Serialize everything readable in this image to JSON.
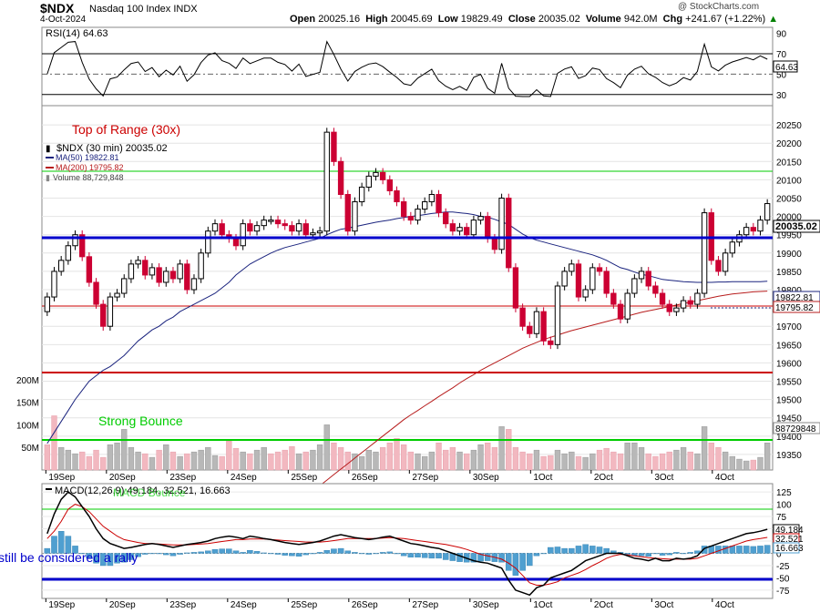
{
  "header": {
    "symbol": "$NDX",
    "index_name": "Nasdaq 100 Index  INDX",
    "date": "4-Oct-2024",
    "open_label": "Open",
    "open": "20025.16",
    "high_label": "High",
    "high": "20045.69",
    "low_label": "Low",
    "low": "19829.49",
    "close_label": "Close",
    "close": "20035.02",
    "volume_label": "Volume",
    "volume": "942.0M",
    "chg_label": "Chg",
    "chg": "+241.67 (+1.22%)",
    "chg_arrow": "▲",
    "copyright": "@ StockCharts.com"
  },
  "annotations": {
    "top_of_range": "Top of Range (30x)",
    "strong_bounce": "Strong Bounce",
    "macd_bounce": "MACD Bounce",
    "rally_note": "still be considered a rally"
  },
  "colors": {
    "up": "#000000",
    "down": "#cc0033",
    "ma50": "#1a237e",
    "ma200": "#b71c1c",
    "support_line": "#0000cc",
    "red_line": "#cc0000",
    "green_line": "#00cc00",
    "vol_up": "#b8b8b8",
    "vol_down": "#f2b8c0",
    "macd_hist": "#4f9fd0"
  },
  "chart_data": [
    {
      "type": "line",
      "title": "RSI(14) 64.63",
      "series": [
        {
          "name": "RSI(14)",
          "last": 64.63
        }
      ],
      "ylim": [
        20,
        95
      ],
      "yticks": [
        30,
        50,
        70,
        90
      ],
      "reference_lines": [
        30,
        50,
        70
      ],
      "last_label": "64.63"
    },
    {
      "type": "candlestick",
      "title": "$NDX (30 min) 20035.02",
      "legend": [
        {
          "name": "MA(50) 19822.81",
          "color": "#1a237e"
        },
        {
          "name": "MA(200) 19795.82",
          "color": "#b71c1c"
        },
        {
          "name": "Volume 88,729,848",
          "color": "#888888"
        }
      ],
      "x_labels": [
        "19Sep",
        "20Sep",
        "23Sep",
        "24Sep",
        "25Sep",
        "26Sep",
        "27Sep",
        "30Sep",
        "1Oct",
        "2Oct",
        "3Oct",
        "4Oct"
      ],
      "y_ticks": [
        19350,
        19400,
        19450,
        19500,
        19550,
        19600,
        19650,
        19700,
        19750,
        19800,
        19850,
        19900,
        19950,
        20000,
        20050,
        20100,
        20150,
        20200,
        20250
      ],
      "ylim": [
        19310,
        20300
      ],
      "closes": [
        19780,
        19850,
        19880,
        19920,
        19950,
        19890,
        19820,
        19760,
        19700,
        19780,
        19790,
        19830,
        19870,
        19880,
        19840,
        19860,
        19820,
        19850,
        19830,
        19870,
        19800,
        19830,
        19900,
        19960,
        19980,
        19950,
        19940,
        19920,
        19980,
        19960,
        19975,
        19990,
        19990,
        19980,
        19975,
        19960,
        19980,
        19950,
        19955,
        19960,
        20230,
        20150,
        20060,
        19960,
        20040,
        20080,
        20110,
        20120,
        20100,
        20070,
        20040,
        20000,
        19990,
        20020,
        20040,
        20060,
        20010,
        19980,
        19960,
        19970,
        19950,
        19990,
        20000,
        19940,
        19910,
        20050,
        19860,
        19750,
        19700,
        19680,
        19740,
        19660,
        19650,
        19810,
        19850,
        19870,
        19780,
        19800,
        19860,
        19850,
        19790,
        19760,
        19720,
        19790,
        19830,
        19850,
        19810,
        19790,
        19760,
        19740,
        19750,
        19770,
        19760,
        19790,
        20010,
        19880,
        19850,
        19900,
        19930,
        19950,
        19970,
        19960,
        19990,
        20035
      ],
      "ma50": [
        19380,
        19410,
        19440,
        19470,
        19500,
        19525,
        19550,
        19565,
        19580,
        19590,
        19605,
        19620,
        19640,
        19660,
        19675,
        19690,
        19700,
        19715,
        19725,
        19740,
        19750,
        19760,
        19770,
        19780,
        19790,
        19805,
        19820,
        19840,
        19855,
        19870,
        19880,
        19890,
        19900,
        19908,
        19915,
        19920,
        19925,
        19930,
        19935,
        19940,
        19950,
        19958,
        19965,
        19968,
        19972,
        19976,
        19980,
        19984,
        19987,
        19990,
        19994,
        19997,
        20000,
        20002,
        20005,
        20008,
        20010,
        20012,
        20012,
        20010,
        20008,
        20005,
        20000,
        19998,
        19992,
        19985,
        19978,
        19965,
        19952,
        19942,
        19935,
        19930,
        19925,
        19920,
        19915,
        19910,
        19905,
        19900,
        19895,
        19888,
        19880,
        19870,
        19860,
        19855,
        19848,
        19842,
        19838,
        19833,
        19828,
        19826,
        19824,
        19822,
        19821,
        19820,
        19820,
        19820,
        19821,
        19821,
        19822,
        19822,
        19822,
        19822,
        19822,
        19823
      ],
      "ma200": [
        null,
        null,
        null,
        null,
        null,
        null,
        null,
        null,
        null,
        null,
        null,
        null,
        null,
        null,
        null,
        null,
        null,
        null,
        null,
        null,
        null,
        null,
        null,
        null,
        null,
        null,
        null,
        null,
        null,
        null,
        null,
        null,
        null,
        null,
        null,
        null,
        null,
        null,
        19258,
        19265,
        19280,
        19295,
        19310,
        19325,
        19340,
        19355,
        19370,
        19385,
        19400,
        19415,
        19430,
        19445,
        19458,
        19470,
        19483,
        19495,
        19508,
        19520,
        19532,
        19545,
        19557,
        19568,
        19580,
        19590,
        19600,
        19610,
        19620,
        19630,
        19640,
        19648,
        19656,
        19664,
        19670,
        19676,
        19682,
        19688,
        19693,
        19698,
        19703,
        19708,
        19713,
        19718,
        19723,
        19728,
        19733,
        19738,
        19742,
        19746,
        19750,
        19754,
        19758,
        19762,
        19766,
        19770,
        19774,
        19778,
        19782,
        19785,
        19788,
        19790,
        19792,
        19794,
        19795,
        19796
      ],
      "volume_scale": [
        "50M",
        "100M",
        "150M",
        "200M"
      ],
      "last_price": "20035.02",
      "last_ma50": "19822.81",
      "last_ma200": "19795.82",
      "last_volume": "88729848",
      "volume_pct": [
        0.28,
        0.6,
        0.25,
        0.22,
        0.18,
        0.2,
        0.15,
        0.22,
        0.14,
        0.28,
        0.3,
        0.45,
        0.25,
        0.2,
        0.18,
        0.14,
        0.22,
        0.28,
        0.2,
        0.15,
        0.18,
        0.2,
        0.22,
        0.25,
        0.16,
        0.15,
        0.32,
        0.24,
        0.2,
        0.18,
        0.22,
        0.25,
        0.18,
        0.2,
        0.22,
        0.26,
        0.18,
        0.2,
        0.22,
        0.28,
        0.5,
        0.3,
        0.25,
        0.2,
        0.18,
        0.15,
        0.22,
        0.2,
        0.25,
        0.3,
        0.35,
        0.28,
        0.2,
        0.18,
        0.15,
        0.2,
        0.3,
        0.22,
        0.25,
        0.2,
        0.18,
        0.22,
        0.28,
        0.3,
        0.25,
        0.48,
        0.45,
        0.25,
        0.2,
        0.18,
        0.22,
        0.15,
        0.16,
        0.22,
        0.18,
        0.2,
        0.15,
        0.14,
        0.18,
        0.22,
        0.24,
        0.2,
        0.18,
        0.3,
        0.3,
        0.25,
        0.18,
        0.15,
        0.18,
        0.2,
        0.22,
        0.25,
        0.2,
        0.18,
        0.48,
        0.3,
        0.25,
        0.2,
        0.15,
        0.12,
        0.1,
        0.11,
        0.14,
        0.3
      ],
      "volume_up": [
        false,
        false,
        true,
        true,
        true,
        false,
        false,
        false,
        false,
        true,
        true,
        true,
        true,
        true,
        false,
        true,
        false,
        true,
        false,
        true,
        false,
        true,
        true,
        true,
        true,
        false,
        false,
        false,
        true,
        false,
        true,
        true,
        false,
        false,
        false,
        false,
        true,
        false,
        true,
        true,
        true,
        false,
        false,
        false,
        true,
        true,
        true,
        true,
        false,
        false,
        false,
        false,
        false,
        true,
        true,
        true,
        false,
        false,
        false,
        true,
        false,
        true,
        true,
        false,
        false,
        true,
        false,
        false,
        false,
        false,
        true,
        false,
        false,
        true,
        true,
        true,
        false,
        true,
        true,
        false,
        false,
        false,
        false,
        true,
        true,
        true,
        false,
        false,
        false,
        false,
        true,
        true,
        false,
        true,
        true,
        false,
        false,
        true,
        true,
        true,
        true,
        false,
        true,
        true
      ]
    },
    {
      "type": "line",
      "title": "MACD(12,26,9) 49.184, 32.521, 16.663",
      "series": [
        {
          "name": "MACD",
          "last": 49.184
        },
        {
          "name": "Signal",
          "last": 32.521
        },
        {
          "name": "Histogram",
          "last": 16.663
        }
      ],
      "ylim": [
        -90,
        140
      ],
      "yticks": [
        -75,
        -50,
        -25,
        0,
        25,
        50,
        75,
        100,
        125
      ],
      "reference_lines": [
        90,
        -50
      ],
      "macd": [
        40,
        80,
        110,
        125,
        115,
        95,
        75,
        50,
        30,
        20,
        15,
        10,
        12,
        15,
        18,
        20,
        18,
        15,
        12,
        15,
        18,
        20,
        22,
        25,
        30,
        33,
        35,
        33,
        30,
        35,
        33,
        30,
        28,
        25,
        22,
        20,
        18,
        20,
        22,
        25,
        30,
        35,
        38,
        35,
        32,
        30,
        28,
        30,
        33,
        35,
        30,
        25,
        20,
        18,
        15,
        12,
        10,
        5,
        0,
        -5,
        -10,
        -15,
        -18,
        -20,
        -25,
        -30,
        -55,
        -75,
        -80,
        -85,
        -70,
        -65,
        -50,
        -45,
        -40,
        -35,
        -25,
        -15,
        -10,
        -5,
        0,
        0,
        0,
        -5,
        -10,
        -12,
        -15,
        -10,
        -15,
        -15,
        -10,
        -12,
        -10,
        -5,
        10,
        15,
        20,
        25,
        30,
        35,
        40,
        42,
        45,
        49
      ],
      "signal": [
        30,
        45,
        65,
        90,
        100,
        95,
        85,
        70,
        55,
        45,
        35,
        28,
        25,
        22,
        20,
        20,
        19,
        18,
        17,
        17,
        17,
        18,
        19,
        20,
        22,
        24,
        26,
        28,
        28,
        29,
        29,
        29,
        28,
        27,
        26,
        25,
        24,
        23,
        23,
        23,
        24,
        26,
        28,
        30,
        30,
        30,
        30,
        30,
        31,
        32,
        31,
        30,
        28,
        26,
        24,
        22,
        20,
        18,
        15,
        12,
        8,
        3,
        -2,
        -5,
        -8,
        -12,
        -20,
        -30,
        -45,
        -60,
        -65,
        -65,
        -62,
        -58,
        -50,
        -45,
        -40,
        -33,
        -25,
        -18,
        -10,
        -5,
        -2,
        -3,
        -5,
        -7,
        -9,
        -10,
        -11,
        -12,
        -12,
        -12,
        -12,
        -10,
        -5,
        0,
        5,
        10,
        15,
        20,
        25,
        28,
        30,
        32.5
      ]
    }
  ]
}
